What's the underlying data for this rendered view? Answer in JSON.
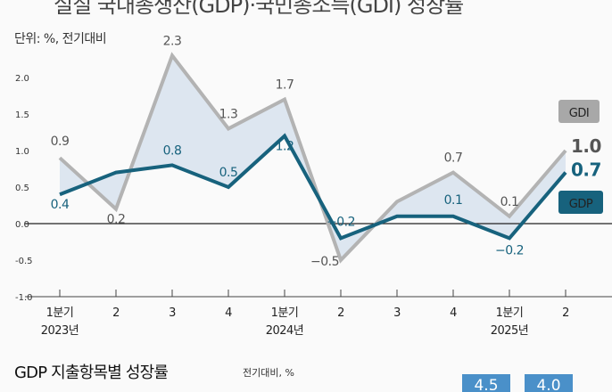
{
  "header": {
    "title": "실질 국내총생산(GDP)·국민총소득(GDI) 성장률",
    "unit": "단위: %, 전기대비"
  },
  "chart_data": {
    "type": "line",
    "categories": [
      "1분기 2023년",
      "2",
      "3",
      "4",
      "1분기 2024년",
      "2",
      "3",
      "4",
      "1분기 2025년",
      "2"
    ],
    "x_tick_lines": [
      [
        "1분기",
        "2023년"
      ],
      [
        "2"
      ],
      [
        "3"
      ],
      [
        "4"
      ],
      [
        "1분기",
        "2024년"
      ],
      [
        "2"
      ],
      [
        "3"
      ],
      [
        "4"
      ],
      [
        "1분기",
        "2025년"
      ],
      [
        "2"
      ]
    ],
    "y_ticks": [
      "-1.0",
      "-0.5",
      "0.0",
      "0.5",
      "1.0",
      "1.5",
      "2.0"
    ],
    "ylim": [
      -1.0,
      2.3
    ],
    "series": [
      {
        "name": "GDI",
        "values": [
          0.9,
          0.2,
          2.3,
          1.3,
          1.7,
          -0.5,
          0.3,
          0.7,
          0.1,
          1.0
        ],
        "labels": [
          "0.9",
          "0.2",
          "2.3",
          "1.3",
          "1.7",
          "−0.5",
          "",
          "0.7",
          "0.1",
          "1.0"
        ],
        "color": "#b3b3b3"
      },
      {
        "name": "GDP",
        "values": [
          0.4,
          0.7,
          0.8,
          0.5,
          1.2,
          -0.2,
          0.1,
          0.1,
          -0.2,
          0.7
        ],
        "labels": [
          "0.4",
          "",
          "0.8",
          "0.5",
          "1.2",
          "−0.2",
          "",
          "0.1",
          "−0.2",
          "0.7"
        ],
        "color": "#17627d"
      }
    ],
    "fill_color": "#dde6f0",
    "grid": false
  },
  "bottom_section": {
    "title": "GDP 지출항목별 성장률",
    "unit": "전기대비, %",
    "bars": [
      "4.5",
      "4.0"
    ],
    "bar_color": "#4a90c9"
  }
}
